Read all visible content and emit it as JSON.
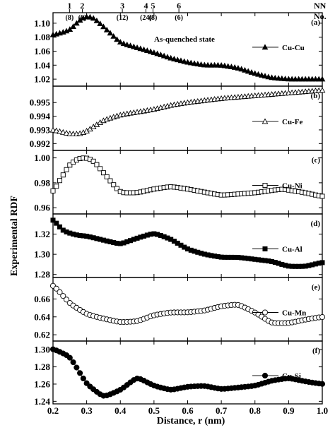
{
  "chart_data": {
    "type": "line",
    "xlabel": "Distance, r (nm)",
    "ylabel": "Experimental RDF",
    "xlim": [
      0.2,
      1.0
    ],
    "xticks": [
      "0.2",
      "0.3",
      "0.4",
      "0.5",
      "0.6",
      "0.7",
      "0.8",
      "0.9",
      "1.0"
    ],
    "annotation": "As-quenched state",
    "nn_header": {
      "label_top": "NN",
      "label_bottom": "No."
    },
    "neighbor_shells": [
      {
        "shell": "1",
        "count": "(8)",
        "r": 0.249
      },
      {
        "shell": "2",
        "count": "(6)",
        "r": 0.287
      },
      {
        "shell": "3",
        "count": "(12)",
        "r": 0.406
      },
      {
        "shell": "4",
        "count": "(24)",
        "r": 0.476
      },
      {
        "shell": "5",
        "count": "(8)",
        "r": 0.497
      },
      {
        "shell": "6",
        "count": "(6)",
        "r": 0.574
      }
    ],
    "panels": [
      {
        "letter": "(a)",
        "name": "Cu-Cu",
        "marker": "triangle-filled",
        "ylim": [
          1.01,
          1.115
        ],
        "yticks": [
          "1.02",
          "1.04",
          "1.06",
          "1.08",
          "1.10"
        ],
        "x": [
          0.2,
          0.25,
          0.28,
          0.3,
          0.32,
          0.35,
          0.4,
          0.45,
          0.5,
          0.55,
          0.6,
          0.65,
          0.7,
          0.75,
          0.8,
          0.85,
          0.9,
          0.95,
          1.0
        ],
        "values": [
          1.083,
          1.09,
          1.105,
          1.11,
          1.108,
          1.095,
          1.072,
          1.065,
          1.058,
          1.05,
          1.044,
          1.04,
          1.04,
          1.036,
          1.028,
          1.022,
          1.02,
          1.02,
          1.02
        ]
      },
      {
        "letter": "(b)",
        "name": "Cu-Fe",
        "marker": "triangle-open",
        "ylim": [
          0.9915,
          0.9962
        ],
        "yticks": [
          "0.992",
          "0.993",
          "0.994",
          "0.995"
        ],
        "x": [
          0.2,
          0.25,
          0.28,
          0.3,
          0.35,
          0.4,
          0.45,
          0.5,
          0.55,
          0.6,
          0.7,
          0.8,
          0.9,
          1.0
        ],
        "values": [
          0.993,
          0.9927,
          0.9927,
          0.9929,
          0.9937,
          0.9941,
          0.9943,
          0.9945,
          0.9948,
          0.995,
          0.9953,
          0.9955,
          0.9957,
          0.9959
        ]
      },
      {
        "letter": "(c)",
        "name": "Cu-Ni",
        "marker": "square-open",
        "ylim": [
          0.955,
          1.006
        ],
        "yticks": [
          "0.96",
          "0.98",
          "1.00"
        ],
        "x": [
          0.2,
          0.22,
          0.25,
          0.28,
          0.3,
          0.32,
          0.35,
          0.4,
          0.45,
          0.5,
          0.55,
          0.6,
          0.7,
          0.8,
          0.88,
          0.95,
          1.0
        ],
        "values": [
          0.972,
          0.982,
          0.995,
          1.0,
          1.0,
          0.998,
          0.988,
          0.972,
          0.972,
          0.975,
          0.977,
          0.975,
          0.97,
          0.972,
          0.975,
          0.972,
          0.969
        ]
      },
      {
        "letter": "(d)",
        "name": "Cu-Al",
        "marker": "square-filled",
        "ylim": [
          1.277,
          1.34
        ],
        "yticks": [
          "1.28",
          "1.30",
          "1.32"
        ],
        "x": [
          0.2,
          0.23,
          0.27,
          0.3,
          0.35,
          0.4,
          0.45,
          0.5,
          0.55,
          0.6,
          0.65,
          0.7,
          0.75,
          0.8,
          0.85,
          0.9,
          0.95,
          1.0
        ],
        "values": [
          1.335,
          1.323,
          1.319,
          1.318,
          1.314,
          1.31,
          1.316,
          1.321,
          1.315,
          1.305,
          1.3,
          1.297,
          1.297,
          1.295,
          1.293,
          1.288,
          1.288,
          1.292
        ]
      },
      {
        "letter": "(e)",
        "name": "Cu-Mn",
        "marker": "circle-open",
        "ylim": [
          0.613,
          0.684
        ],
        "yticks": [
          "0.62",
          "0.64",
          "0.66"
        ],
        "x": [
          0.2,
          0.25,
          0.3,
          0.35,
          0.4,
          0.45,
          0.5,
          0.55,
          0.6,
          0.65,
          0.7,
          0.75,
          0.8,
          0.85,
          0.9,
          0.95,
          1.0
        ],
        "values": [
          0.676,
          0.655,
          0.643,
          0.638,
          0.634,
          0.635,
          0.642,
          0.645,
          0.645,
          0.647,
          0.652,
          0.654,
          0.645,
          0.633,
          0.633,
          0.637,
          0.64
        ]
      },
      {
        "letter": "(f)",
        "name": "Cu-Si",
        "marker": "circle-filled",
        "ylim": [
          1.237,
          1.31
        ],
        "yticks": [
          "1.24",
          "1.26",
          "1.28",
          "1.30"
        ],
        "x": [
          0.2,
          0.25,
          0.3,
          0.35,
          0.4,
          0.45,
          0.5,
          0.55,
          0.6,
          0.65,
          0.7,
          0.75,
          0.8,
          0.85,
          0.9,
          0.95,
          1.0
        ],
        "values": [
          1.301,
          1.292,
          1.26,
          1.245,
          1.253,
          1.268,
          1.258,
          1.253,
          1.257,
          1.258,
          1.254,
          1.256,
          1.258,
          1.264,
          1.267,
          1.263,
          1.26
        ]
      }
    ]
  }
}
